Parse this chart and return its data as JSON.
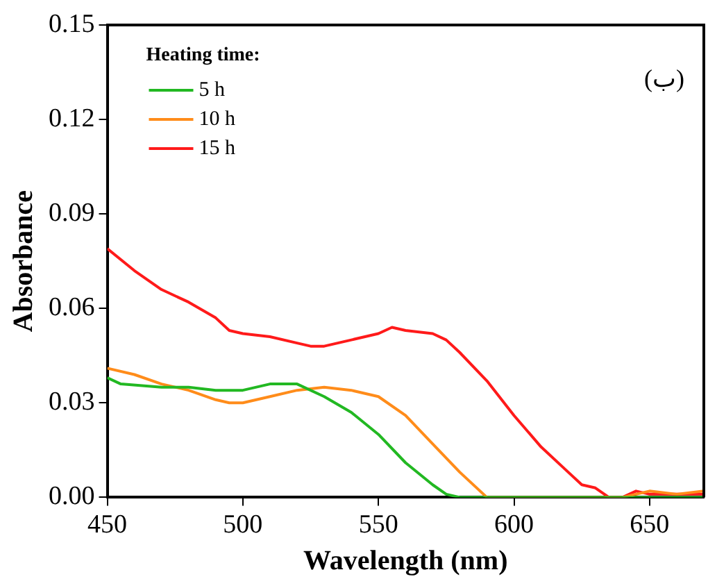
{
  "chart_data": {
    "type": "line",
    "xlabel": "Wavelength (nm)",
    "ylabel": "Absorbance",
    "legend_title": "Heating time:",
    "annotations": [
      "(ب)"
    ],
    "xlim": [
      450,
      670
    ],
    "xticks": [
      450,
      500,
      550,
      600,
      650
    ],
    "ylim": [
      0,
      0.15
    ],
    "yticks": [
      {
        "value": 0,
        "label": "0.00"
      },
      {
        "value": 0.03,
        "label": "0.03"
      },
      {
        "value": 0.06,
        "label": "0.06"
      },
      {
        "value": 0.09,
        "label": "0.09"
      },
      {
        "value": 0.12,
        "label": "0.12"
      },
      {
        "value": 0.15,
        "label": "0.15"
      }
    ],
    "grid": false,
    "legend": "top left",
    "marker": "none",
    "line_style": "solid",
    "series": [
      {
        "name": "5 h",
        "color": "#22b822",
        "x": [
          450,
          455,
          470,
          480,
          490,
          500,
          510,
          520,
          530,
          540,
          550,
          560,
          570,
          575,
          580,
          600,
          620,
          640,
          660,
          670
        ],
        "values": [
          0.038,
          0.036,
          0.035,
          0.035,
          0.034,
          0.034,
          0.036,
          0.036,
          0.032,
          0.027,
          0.02,
          0.011,
          0.004,
          0.001,
          0,
          0,
          0,
          0,
          0,
          0
        ]
      },
      {
        "name": "10 h",
        "color": "#ff8c1a",
        "x": [
          450,
          460,
          470,
          480,
          490,
          495,
          500,
          510,
          520,
          530,
          540,
          550,
          560,
          570,
          580,
          590,
          610,
          630,
          640,
          650,
          660,
          670
        ],
        "values": [
          0.041,
          0.039,
          0.036,
          0.034,
          0.031,
          0.03,
          0.03,
          0.032,
          0.034,
          0.035,
          0.034,
          0.032,
          0.026,
          0.017,
          0.008,
          0,
          0,
          0,
          0,
          0.002,
          0.001,
          0.002
        ]
      },
      {
        "name": "15 h",
        "color": "#ff1a1a",
        "x": [
          450,
          460,
          470,
          480,
          490,
          495,
          500,
          510,
          520,
          525,
          530,
          540,
          550,
          555,
          560,
          570,
          575,
          580,
          590,
          600,
          610,
          620,
          625,
          630,
          635,
          640,
          645,
          650,
          660,
          670
        ],
        "values": [
          0.079,
          0.072,
          0.066,
          0.062,
          0.057,
          0.053,
          0.052,
          0.051,
          0.049,
          0.048,
          0.048,
          0.05,
          0.052,
          0.054,
          0.053,
          0.052,
          0.05,
          0.046,
          0.037,
          0.026,
          0.016,
          0.008,
          0.004,
          0.003,
          0,
          0,
          0.002,
          0.001,
          0.001,
          0.001
        ]
      }
    ]
  }
}
